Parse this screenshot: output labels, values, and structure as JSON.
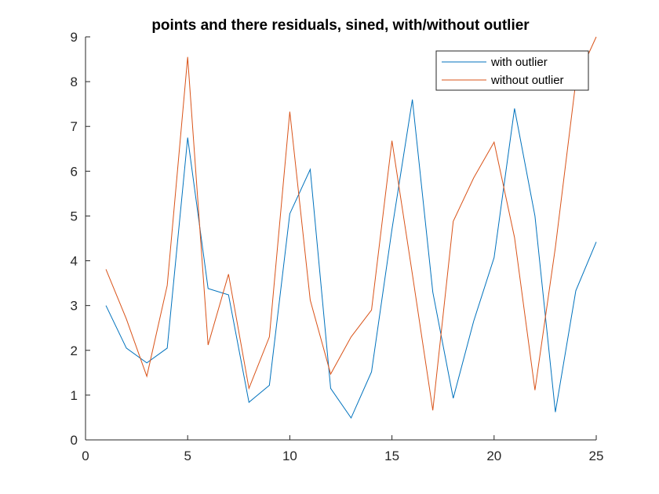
{
  "chart_data": {
    "type": "line",
    "title": "points and there residuals, sined, with/without outlier",
    "xlabel": "",
    "ylabel": "",
    "xlim": [
      0,
      25
    ],
    "ylim": [
      0,
      9
    ],
    "xticks": [
      0,
      5,
      10,
      15,
      20,
      25
    ],
    "yticks": [
      0,
      1,
      2,
      3,
      4,
      5,
      6,
      7,
      8,
      9
    ],
    "grid": false,
    "legend_position": "top-right",
    "x": [
      1,
      2,
      3,
      4,
      5,
      6,
      7,
      8,
      9,
      10,
      11,
      12,
      13,
      14,
      15,
      16,
      17,
      18,
      19,
      20,
      21,
      22,
      23,
      24,
      25
    ],
    "series": [
      {
        "name": "with outlier",
        "color": "#0072BD",
        "values": [
          3.0,
          2.05,
          1.72,
          2.05,
          6.75,
          3.38,
          3.24,
          0.84,
          1.22,
          5.05,
          6.04,
          1.15,
          0.49,
          1.52,
          4.7,
          7.6,
          3.3,
          0.93,
          2.65,
          4.07,
          7.4,
          5.0,
          0.62,
          3.33,
          4.42
        ]
      },
      {
        "name": "without outlier",
        "color": "#D95319",
        "values": [
          3.81,
          2.7,
          1.42,
          3.45,
          8.55,
          2.12,
          3.7,
          1.15,
          2.3,
          7.33,
          3.12,
          1.47,
          2.3,
          2.9,
          6.68,
          3.7,
          0.66,
          4.88,
          5.85,
          6.65,
          4.52,
          1.11,
          4.3,
          8.0,
          9.0
        ]
      }
    ]
  }
}
